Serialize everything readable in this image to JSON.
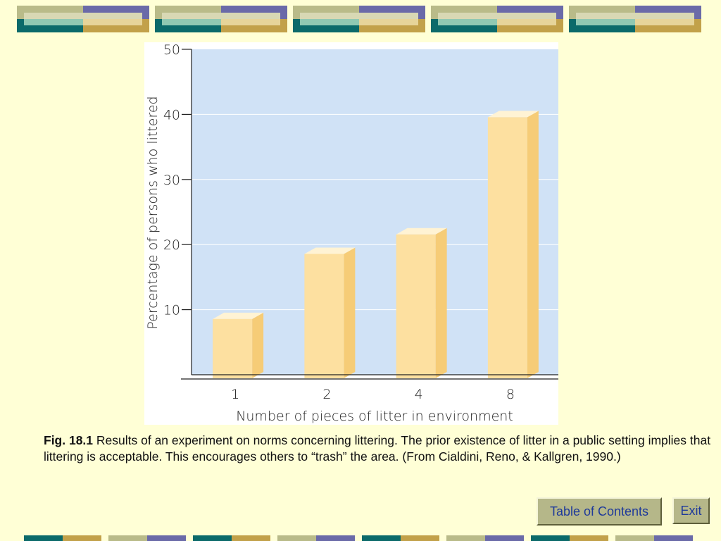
{
  "chart_data": {
    "type": "bar",
    "categories": [
      "1",
      "2",
      "4",
      "8"
    ],
    "values": [
      9,
      19,
      22,
      40
    ],
    "title": "",
    "xlabel": "Number of pieces of litter in environment",
    "ylabel": "Percentage of persons who littered",
    "ylim": [
      0,
      50
    ],
    "yticks": [
      "10",
      "20",
      "30",
      "40",
      "50"
    ],
    "grid": true,
    "colors": {
      "plot_bg": "#d0e2f6",
      "bar_front": "#fde0a0",
      "bar_side": "#f6cc77",
      "bar_top": "#fff3d4"
    }
  },
  "caption": {
    "fig_label": "Fig. 18.1",
    "text": " Results of an experiment on norms concerning littering. The prior existence of litter in a public setting implies that littering is acceptable. This encourages others to “trash” the area. (From Cialdini, Reno, & Kallgren, 1990.)"
  },
  "nav": {
    "toc_label": "Table of Contents",
    "exit_label": "Exit"
  },
  "theme": {
    "top_colors": [
      "#b9bb89",
      "#6a6aa8",
      "#0b6a6a",
      "#c2a14a",
      "#d8d8b4",
      "#90c8b2",
      "#e6d49a"
    ],
    "bottom_colors": [
      "#0b6a6a",
      "#c2a14a",
      "#b9bb89",
      "#6a6aa8"
    ]
  }
}
